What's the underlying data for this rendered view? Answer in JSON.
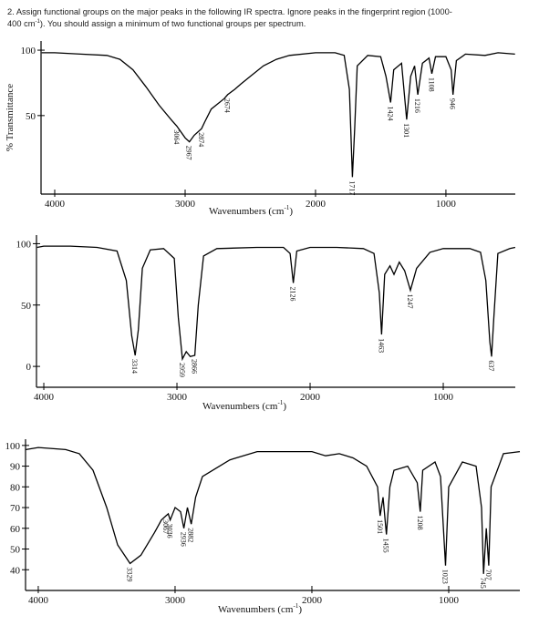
{
  "question": [
    "2. Assign functional groups on the major peaks in the following IR spectra. Ignore peaks in the fingerprint region (1000-",
    "400 cm",
    "-1",
    "). You should assign a minimum of two functional groups per spectrum."
  ],
  "chart_data": [
    {
      "type": "line",
      "y_label": "% Transmittance",
      "x_label": [
        "Wavenumbers (cm",
        "-1",
        ")"
      ],
      "color": "#000000",
      "xlim": [
        4105,
        468
      ],
      "ylim": [
        -10,
        107
      ],
      "xticks": [
        4000,
        3000,
        2000,
        1000
      ],
      "yticks": [
        100,
        50
      ],
      "x": [
        4100,
        4000,
        3800,
        3600,
        3500,
        3400,
        3300,
        3200,
        3100,
        3064,
        3000,
        2967,
        2930,
        2874,
        2850,
        2800,
        2700,
        2674,
        2620,
        2574,
        2500,
        2400,
        2300,
        2200,
        2000,
        1850,
        1780,
        1740,
        1717,
        1700,
        1680,
        1600,
        1500,
        1460,
        1424,
        1400,
        1340,
        1301,
        1270,
        1240,
        1216,
        1180,
        1130,
        1108,
        1080,
        1000,
        960,
        946,
        920,
        850,
        700,
        600,
        470
      ],
      "values": [
        98,
        98,
        97,
        96,
        93,
        85,
        72,
        58,
        46,
        42,
        33,
        30,
        35,
        40,
        45,
        55,
        63,
        66,
        70,
        74,
        80,
        88,
        93,
        96,
        98,
        98,
        96,
        70,
        3,
        40,
        88,
        96,
        95,
        80,
        60,
        85,
        90,
        47,
        80,
        88,
        66,
        90,
        94,
        82,
        95,
        95,
        85,
        66,
        92,
        97,
        96,
        98,
        97
      ],
      "peaks": [
        3064,
        2967,
        2874,
        2674,
        1717,
        1424,
        1301,
        1216,
        1108,
        946
      ]
    },
    {
      "type": "line",
      "x_label": [
        "Wavenumbers (cm",
        "-1",
        ")"
      ],
      "color": "#000000",
      "xlim": [
        4055,
        459
      ],
      "ylim": [
        -17,
        107
      ],
      "xticks": [
        4000,
        3000,
        2000,
        1000
      ],
      "yticks": [
        100,
        50,
        0
      ],
      "x": [
        4050,
        4000,
        3800,
        3600,
        3450,
        3380,
        3340,
        3314,
        3290,
        3260,
        3200,
        3100,
        3020,
        2990,
        2959,
        2930,
        2900,
        2866,
        2840,
        2800,
        2700,
        2400,
        2200,
        2150,
        2126,
        2100,
        2000,
        1800,
        1600,
        1520,
        1480,
        1463,
        1440,
        1400,
        1370,
        1330,
        1290,
        1247,
        1200,
        1100,
        1000,
        900,
        800,
        720,
        680,
        650,
        637,
        620,
        590,
        500,
        460
      ],
      "values": [
        97,
        98,
        98,
        97,
        94,
        70,
        25,
        9,
        30,
        80,
        95,
        96,
        88,
        40,
        6,
        12,
        8,
        9,
        50,
        90,
        96,
        97,
        97,
        92,
        68,
        94,
        97,
        97,
        96,
        92,
        60,
        26,
        75,
        82,
        75,
        85,
        78,
        62,
        80,
        93,
        96,
        96,
        96,
        93,
        70,
        20,
        8,
        40,
        92,
        96,
        97
      ],
      "peaks": [
        3314,
        2959,
        2866,
        2126,
        1463,
        1247,
        637
      ]
    },
    {
      "type": "line",
      "x_label": [
        "Wavenumbers (cm",
        "-1",
        ")"
      ],
      "color": "#000000",
      "xlim": [
        4093,
        480
      ],
      "ylim": [
        30,
        103
      ],
      "xticks": [
        4000,
        3000,
        2000,
        1000
      ],
      "yticks": [
        100,
        90,
        80,
        70,
        60,
        50,
        40
      ],
      "x": [
        4090,
        4000,
        3800,
        3700,
        3600,
        3500,
        3420,
        3329,
        3250,
        3150,
        3100,
        3067,
        3050,
        3036,
        3000,
        2960,
        2936,
        2910,
        2882,
        2850,
        2800,
        2600,
        2400,
        2200,
        2000,
        1900,
        1800,
        1700,
        1600,
        1520,
        1501,
        1480,
        1455,
        1430,
        1400,
        1300,
        1230,
        1208,
        1190,
        1100,
        1060,
        1023,
        1000,
        900,
        800,
        760,
        745,
        725,
        707,
        690,
        600,
        480
      ],
      "values": [
        98,
        99,
        98,
        96,
        88,
        70,
        52,
        43,
        47,
        58,
        64,
        66,
        67,
        64,
        70,
        68,
        60,
        70,
        62,
        75,
        85,
        93,
        97,
        97,
        97,
        95,
        96,
        94,
        90,
        80,
        66,
        75,
        57,
        80,
        88,
        90,
        82,
        68,
        88,
        92,
        85,
        42,
        80,
        92,
        90,
        70,
        38,
        60,
        42,
        80,
        96,
        97
      ],
      "peaks": [
        3329,
        3067,
        3036,
        2936,
        2882,
        1501,
        1455,
        1208,
        1023,
        745,
        707
      ]
    }
  ]
}
